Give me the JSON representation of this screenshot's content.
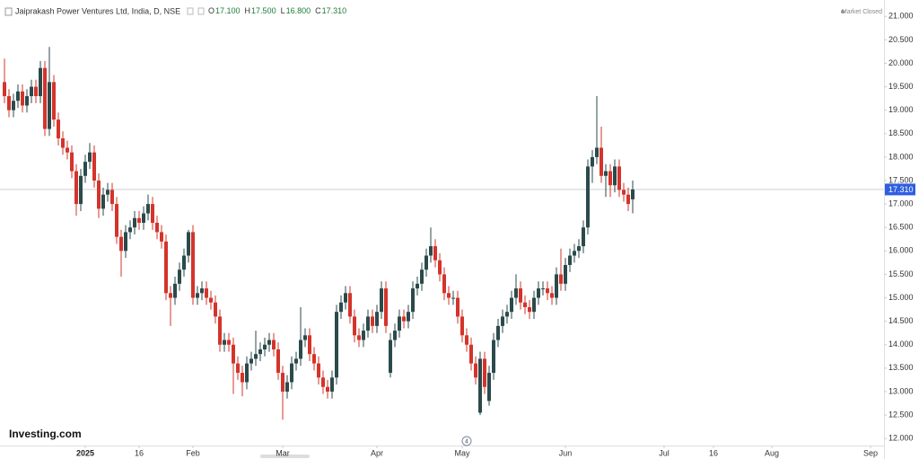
{
  "chart_data": {
    "type": "candlestick",
    "title": "Jaiprakash Power Ventures Ltd, India, D, NSE",
    "ohlc": [
      {
        "key": "O",
        "value": "17.100"
      },
      {
        "key": "H",
        "value": "17.500"
      },
      {
        "key": "L",
        "value": "16.800"
      },
      {
        "key": "C",
        "value": "17.310"
      }
    ],
    "status": "Market Closed",
    "brand": "Investing.com",
    "up_color": "#2b4a4b",
    "down_color": "#d3342b",
    "grid": false,
    "xlim": [
      -1,
      196
    ],
    "ylim": [
      11.85,
      21.35
    ],
    "xticks": [
      {
        "value": 18,
        "label": "2025"
      },
      {
        "value": 30,
        "label": "16"
      },
      {
        "value": 42,
        "label": "Feb"
      },
      {
        "value": 62,
        "label": "Mar"
      },
      {
        "value": 83,
        "label": "Apr"
      },
      {
        "value": 102,
        "label": "May"
      },
      {
        "value": 125,
        "label": "Jun"
      },
      {
        "value": 147,
        "label": "Jul"
      },
      {
        "value": 158,
        "label": "16"
      },
      {
        "value": 171,
        "label": "Aug"
      },
      {
        "value": 193,
        "label": "Sep"
      }
    ],
    "yticks": [
      {
        "value": 12,
        "label": "12.000"
      },
      {
        "value": 12.5,
        "label": "12.500"
      },
      {
        "value": 13,
        "label": "13.000"
      },
      {
        "value": 13.5,
        "label": "13.500"
      },
      {
        "value": 14,
        "label": "14.000"
      },
      {
        "value": 14.5,
        "label": "14.500"
      },
      {
        "value": 15,
        "label": "15.000"
      },
      {
        "value": 15.5,
        "label": "15.500"
      },
      {
        "value": 16,
        "label": "16.000"
      },
      {
        "value": 16.5,
        "label": "16.500"
      },
      {
        "value": 17,
        "label": "17.000"
      },
      {
        "value": 17.5,
        "label": "17.500"
      },
      {
        "value": 18,
        "label": "18.000"
      },
      {
        "value": 18.5,
        "label": "18.500"
      },
      {
        "value": 19,
        "label": "19.000"
      },
      {
        "value": 19.5,
        "label": "19.500"
      },
      {
        "value": 20,
        "label": "20.000"
      },
      {
        "value": 20.5,
        "label": "20.500"
      },
      {
        "value": 21,
        "label": "21.000"
      }
    ],
    "last_price": {
      "value": 17.31,
      "label": "17.310"
    },
    "events": [
      {
        "x": 103,
        "label": "4"
      }
    ],
    "open": [
      19.6,
      19.3,
      19.0,
      19.2,
      19.4,
      19.1,
      19.3,
      19.5,
      19.3,
      19.9,
      18.6,
      19.6,
      18.8,
      18.4,
      18.2,
      18.1,
      17.7,
      17.0,
      17.6,
      17.9,
      18.1,
      17.5,
      16.9,
      17.2,
      17.3,
      17.0,
      16.3,
      16.0,
      16.4,
      16.5,
      16.7,
      16.6,
      16.8,
      17.0,
      16.6,
      16.4,
      16.2,
      15.1,
      15.0,
      15.3,
      15.6,
      15.9,
      16.4,
      15.0,
      15.1,
      15.2,
      15.0,
      14.9,
      14.6,
      14.0,
      14.1,
      14.0,
      13.6,
      13.4,
      13.2,
      13.6,
      13.7,
      13.8,
      13.9,
      14.0,
      14.1,
      13.9,
      13.4,
      13.0,
      13.2,
      13.6,
      13.7,
      14.1,
      14.2,
      13.8,
      13.6,
      13.3,
      13.1,
      13.0,
      13.3,
      14.7,
      14.9,
      15.1,
      14.6,
      14.2,
      14.1,
      14.3,
      14.6,
      14.4,
      14.7,
      15.2,
      13.4,
      14.1,
      14.3,
      14.6,
      14.5,
      14.7,
      15.2,
      15.3,
      15.6,
      15.9,
      16.1,
      15.8,
      15.5,
      15.1,
      15.0,
      15.0,
      14.6,
      14.2,
      14.0,
      13.6,
      12.55,
      13.7,
      12.8,
      13.4,
      14.1,
      14.4,
      14.6,
      14.7,
      15.0,
      15.2,
      14.9,
      14.8,
      14.7,
      15.0,
      15.2,
      15.2,
      15.1,
      15.0,
      15.5,
      15.3,
      15.7,
      15.9,
      16.0,
      16.1,
      16.5,
      17.8,
      18.0,
      18.2,
      17.6,
      17.7,
      17.4,
      17.8,
      17.3,
      17.2,
      17.1
    ],
    "high": [
      20.1,
      19.45,
      19.35,
      19.55,
      19.55,
      19.45,
      19.65,
      19.65,
      20.05,
      20.05,
      20.35,
      19.75,
      18.95,
      18.55,
      18.35,
      18.25,
      17.85,
      17.75,
      18.05,
      18.3,
      18.25,
      17.65,
      17.35,
      17.45,
      17.45,
      17.15,
      16.45,
      16.55,
      16.65,
      16.85,
      16.85,
      16.95,
      17.2,
      17.15,
      16.75,
      16.55,
      16.35,
      15.25,
      15.45,
      15.75,
      16.05,
      16.45,
      16.55,
      15.25,
      15.35,
      15.35,
      15.15,
      15.05,
      14.75,
      14.25,
      14.25,
      14.15,
      13.75,
      13.55,
      13.75,
      13.85,
      14.3,
      14.05,
      14.15,
      14.25,
      14.25,
      14.05,
      13.55,
      13.35,
      13.75,
      13.85,
      14.8,
      14.35,
      14.35,
      13.95,
      13.75,
      13.45,
      13.25,
      13.45,
      14.85,
      15.05,
      15.25,
      15.25,
      14.75,
      14.35,
      14.45,
      14.75,
      14.75,
      14.85,
      15.35,
      15.35,
      14.25,
      14.45,
      14.75,
      14.75,
      14.85,
      15.35,
      15.45,
      15.75,
      16.05,
      16.5,
      16.25,
      15.95,
      15.65,
      15.25,
      15.15,
      15.15,
      14.75,
      14.35,
      14.15,
      13.75,
      13.85,
      13.85,
      13.55,
      14.25,
      14.55,
      14.75,
      14.85,
      15.15,
      15.5,
      15.35,
      15.05,
      14.95,
      15.15,
      15.35,
      15.35,
      15.35,
      15.25,
      15.65,
      16.05,
      15.85,
      16.05,
      16.15,
      16.25,
      16.65,
      17.95,
      18.15,
      19.3,
      18.65,
      17.85,
      17.85,
      17.95,
      17.95,
      17.45,
      17.35,
      17.5
    ],
    "low": [
      19.15,
      18.85,
      18.85,
      19.05,
      18.95,
      18.95,
      19.15,
      19.15,
      19.15,
      18.45,
      18.45,
      18.65,
      18.25,
      18.05,
      17.95,
      17.55,
      16.75,
      16.85,
      17.45,
      17.75,
      17.35,
      16.7,
      16.75,
      17.05,
      16.85,
      16.15,
      15.45,
      15.85,
      16.25,
      16.35,
      16.45,
      16.45,
      16.65,
      16.45,
      16.25,
      16.05,
      14.95,
      14.4,
      14.85,
      15.15,
      15.45,
      15.75,
      14.85,
      14.85,
      14.95,
      14.85,
      14.75,
      14.45,
      13.85,
      13.85,
      13.85,
      12.95,
      13.25,
      12.9,
      13.05,
      13.45,
      13.55,
      13.65,
      13.75,
      13.85,
      13.75,
      13.25,
      12.4,
      12.85,
      13.05,
      13.45,
      13.55,
      13.95,
      13.65,
      13.45,
      13.15,
      12.95,
      12.85,
      12.85,
      13.15,
      14.55,
      14.75,
      14.45,
      14.05,
      13.95,
      13.95,
      14.15,
      14.25,
      14.25,
      14.55,
      14.25,
      13.3,
      13.95,
      14.15,
      14.35,
      14.35,
      14.55,
      15.05,
      15.15,
      15.45,
      15.75,
      15.65,
      15.35,
      14.95,
      14.85,
      14.85,
      14.45,
      14.05,
      13.85,
      13.45,
      13.15,
      12.5,
      12.95,
      12.7,
      13.25,
      13.95,
      14.25,
      14.45,
      14.55,
      14.85,
      14.75,
      14.65,
      14.55,
      14.55,
      14.85,
      15.05,
      14.95,
      14.85,
      14.85,
      15.15,
      15.15,
      15.55,
      15.75,
      15.85,
      15.95,
      16.35,
      17.45,
      17.85,
      17.45,
      17.15,
      17.15,
      17.25,
      17.15,
      17.05,
      16.85,
      16.8
    ],
    "close": [
      19.3,
      19.0,
      19.2,
      19.4,
      19.1,
      19.3,
      19.5,
      19.3,
      19.9,
      18.6,
      19.6,
      18.8,
      18.4,
      18.2,
      18.1,
      17.7,
      17.0,
      17.6,
      17.9,
      18.1,
      17.5,
      16.9,
      17.2,
      17.3,
      17.0,
      16.3,
      16.0,
      16.4,
      16.5,
      16.7,
      16.6,
      16.8,
      17.0,
      16.6,
      16.4,
      16.2,
      15.1,
      15.0,
      15.3,
      15.6,
      15.9,
      16.4,
      15.0,
      15.1,
      15.2,
      15.0,
      14.9,
      14.6,
      14.0,
      14.1,
      14.0,
      13.6,
      13.4,
      13.2,
      13.6,
      13.7,
      13.8,
      13.9,
      14.0,
      14.1,
      13.9,
      13.4,
      13.0,
      13.2,
      13.6,
      13.7,
      14.1,
      14.2,
      13.8,
      13.6,
      13.3,
      13.1,
      13.0,
      13.3,
      14.7,
      14.9,
      15.1,
      14.6,
      14.2,
      14.1,
      14.3,
      14.6,
      14.4,
      14.7,
      15.2,
      14.4,
      14.1,
      14.3,
      14.6,
      14.5,
      14.7,
      15.2,
      15.3,
      15.6,
      15.9,
      16.1,
      15.8,
      15.5,
      15.1,
      15.0,
      15.0,
      14.6,
      14.2,
      14.0,
      13.6,
      13.3,
      13.7,
      13.1,
      13.4,
      14.1,
      14.4,
      14.6,
      14.7,
      15.0,
      15.2,
      14.9,
      14.8,
      14.7,
      15.0,
      15.2,
      15.2,
      15.1,
      15.0,
      15.5,
      15.3,
      15.7,
      15.9,
      16.0,
      16.1,
      16.5,
      17.8,
      18.0,
      18.2,
      17.6,
      17.7,
      17.4,
      17.8,
      17.3,
      17.2,
      17.0,
      17.31
    ]
  }
}
